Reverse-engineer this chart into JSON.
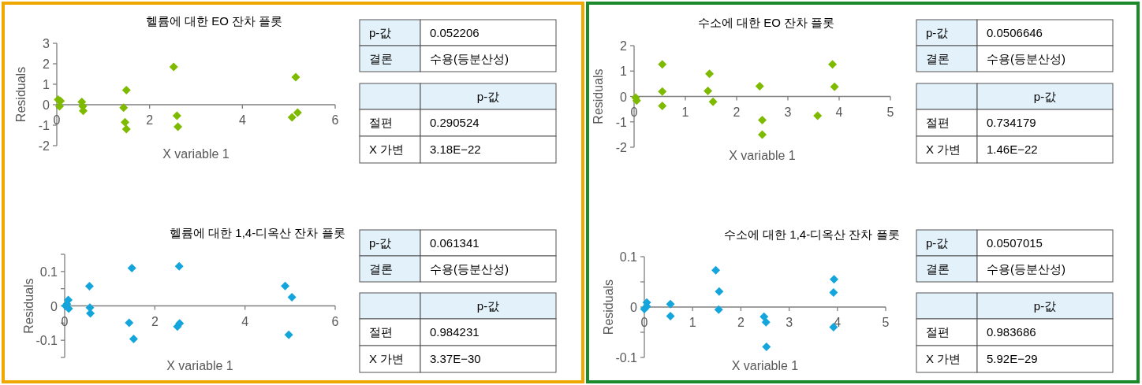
{
  "chart_data": [
    {
      "type": "scatter",
      "title": "헬륨에 대한 EO 잔차 플롯",
      "xlabel": "X variable 1",
      "ylabel": "Residuals",
      "marker": "diamond",
      "xlim": [
        0,
        6
      ],
      "xticks": [
        0,
        2,
        4,
        6
      ],
      "ylim": [
        -2,
        3
      ],
      "yticks": [
        -2,
        -1,
        0,
        1,
        2,
        3
      ],
      "series": [
        {
          "color": "#7dba00",
          "x": [
            0.03,
            0.08,
            0.06,
            0.54,
            0.56,
            0.57,
            1.5,
            1.44,
            1.47,
            1.5,
            2.52,
            2.59,
            2.61,
            5.15,
            5.19,
            5.07
          ],
          "values": [
            0.25,
            0.18,
            -0.08,
            0.13,
            -0.08,
            -0.3,
            0.71,
            -0.14,
            -0.86,
            -1.19,
            1.85,
            -0.54,
            -1.08,
            1.35,
            -0.38,
            -0.62
          ]
        }
      ]
    },
    {
      "type": "other",
      "annotations": [
        "p-값",
        "0.052206",
        "결론",
        "수용(등분산성)",
        "p-값",
        "절편",
        "0.290524",
        "X 가변",
        "3.18E−22"
      ]
    },
    {
      "type": "scatter",
      "title": "수소에 대한 EO 잔차 플롯",
      "xlabel": "X variable 1",
      "ylabel": "Residuals",
      "marker": "diamond",
      "xlim": [
        0,
        5
      ],
      "xticks": [
        0,
        1,
        2,
        3,
        4,
        5
      ],
      "ylim": [
        -2,
        2
      ],
      "yticks": [
        -2,
        -1,
        0,
        1,
        2
      ],
      "series": [
        {
          "color": "#7dba00",
          "x": [
            0.05,
            0.03,
            0.55,
            0.55,
            0.55,
            1.47,
            1.44,
            1.54,
            2.45,
            2.5,
            2.5,
            3.58,
            3.87,
            3.91
          ],
          "values": [
            -0.16,
            -0.05,
            1.26,
            0.19,
            -0.37,
            0.89,
            0.22,
            -0.21,
            0.4,
            -0.93,
            -1.5,
            -0.76,
            1.26,
            0.38
          ]
        }
      ]
    },
    {
      "type": "other",
      "annotations": [
        "p-값",
        "0.0506646",
        "결론",
        "수용(등분산성)",
        "p-값",
        "절편",
        "0.734179",
        "X 가변",
        "1.46E−22"
      ]
    },
    {
      "type": "scatter",
      "title": "헬륨에 대한 1,4-디옥산 잔차 플롯",
      "xlabel": "X variable 1",
      "ylabel": "Residuals",
      "marker": "diamond",
      "xlim": [
        0,
        6
      ],
      "xticks": [
        0,
        2,
        4,
        6
      ],
      "ylim": [
        -0.15,
        0.15
      ],
      "yticks": [
        {
          "value": -0.15,
          "label": null
        },
        -0.1,
        {
          "value": -0.05,
          "label": null
        },
        0,
        {
          "value": 0.05,
          "label": null
        },
        0.1,
        {
          "value": 0.15,
          "label": null
        }
      ],
      "series": [
        {
          "color": "#14a5dc",
          "x": [
            0.08,
            0.02,
            0.09,
            0.05,
            0.55,
            0.56,
            0.57,
            1.49,
            1.43,
            1.53,
            2.54,
            2.55,
            2.5,
            4.89,
            5.04,
            4.97
          ],
          "values": [
            0.017,
            0,
            -0.008,
            0.005,
            0.057,
            -0.005,
            -0.022,
            0.11,
            -0.049,
            -0.096,
            0.115,
            -0.051,
            -0.06,
            0.058,
            0.025,
            -0.084
          ]
        }
      ]
    },
    {
      "type": "other",
      "annotations": [
        "p-값",
        "0.061341",
        "결론",
        "수용(등분산성)",
        "p-값",
        "절편",
        "0.984231",
        "X 가변",
        "3.37E−30"
      ]
    },
    {
      "type": "scatter",
      "title": "수소에 대한 1,4-디옥산 잔차 플롯",
      "xlabel": "X variable 1",
      "ylabel": "Residuals",
      "marker": "diamond",
      "xlim": [
        0,
        5
      ],
      "xticks": [
        0,
        1,
        2,
        3,
        4,
        5
      ],
      "ylim": [
        -0.1,
        0.1
      ],
      "yticks": [
        -0.1,
        {
          "value": -0.05,
          "label": null
        },
        0,
        {
          "value": 0.05,
          "label": null
        },
        0.1
      ],
      "series": [
        {
          "color": "#14a5dc",
          "x": [
            0.05,
            0,
            0.05,
            0.54,
            0.54,
            1.48,
            1.55,
            1.54,
            2.48,
            2.52,
            2.53,
            3.93,
            3.92,
            3.92
          ],
          "values": [
            0.009,
            -0.004,
            0.001,
            0.006,
            -0.018,
            0.073,
            0.031,
            -0.005,
            -0.019,
            -0.03,
            -0.079,
            0.055,
            0.029,
            -0.04
          ]
        }
      ]
    },
    {
      "type": "other",
      "annotations": [
        "p-값",
        "0.0507015",
        "결론",
        "수용(등분산성)",
        "p-값",
        "절편",
        "0.983686",
        "X 가변",
        "5.92E−29"
      ]
    }
  ]
}
